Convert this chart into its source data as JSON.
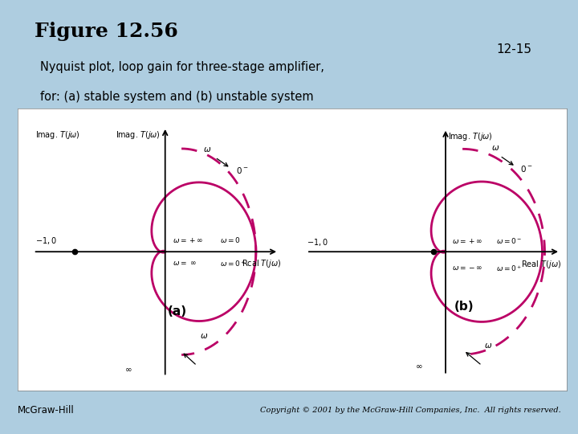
{
  "title": "Figure 12.56",
  "subtitle_line1": "Nyquist plot, loop gain for three-stage amplifier,",
  "subtitle_line2": "for: (a) stable system and (b) unstable system",
  "page_number": "12-15",
  "footer_left": "McGraw-Hill",
  "footer_right": "Copyright © 2001 by the McGraw-Hill Companies, Inc.  All rights reserved.",
  "bg_color": "#aecde0",
  "panel_bg": "#ffffff",
  "curve_color": "#bb0066",
  "label_a": "(a)",
  "label_b": "(b)"
}
